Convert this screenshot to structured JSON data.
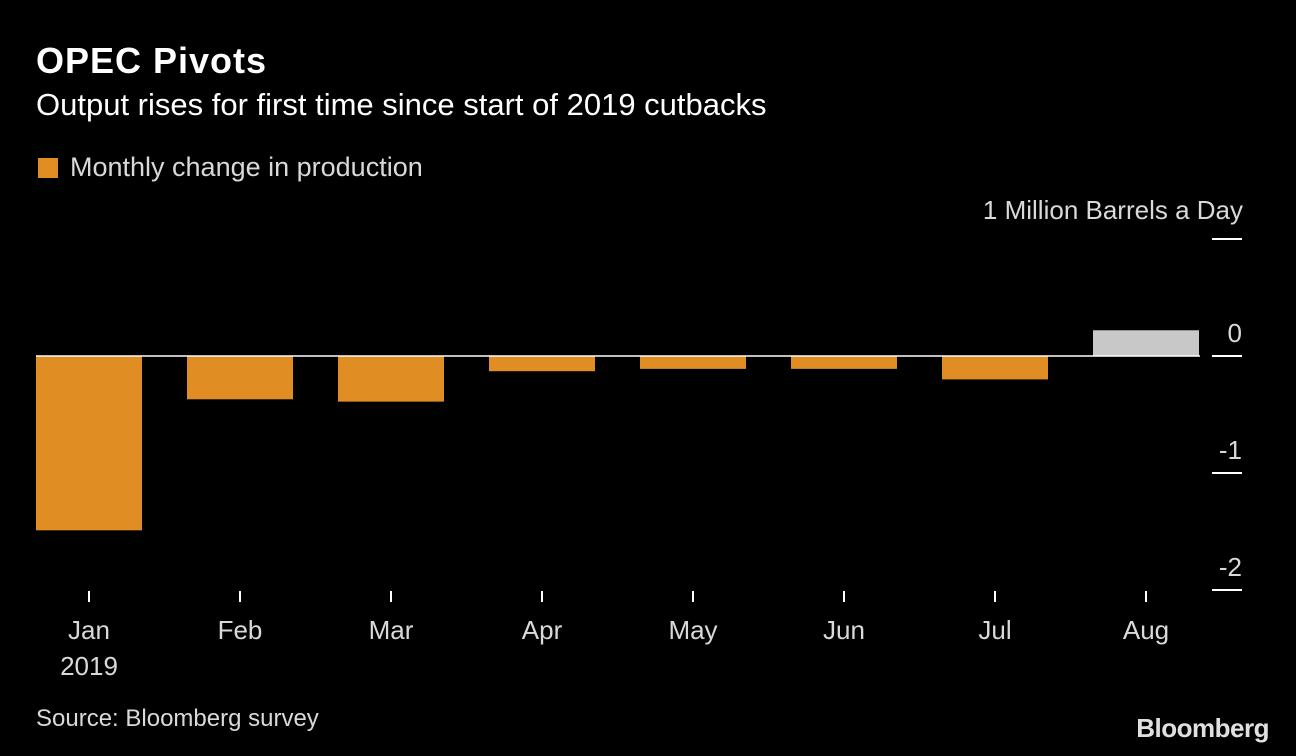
{
  "header": {
    "title": "OPEC Pivots",
    "subtitle": "Output rises for first time since start of 2019 cutbacks"
  },
  "legend": {
    "label": "Monthly change in production",
    "color": "#e08e24"
  },
  "unit_label": "1 Million Barrels a Day",
  "footer": {
    "source": "Source: Bloomberg survey",
    "brand": "Bloomberg"
  },
  "colors": {
    "background": "#000000",
    "negative_bar": "#e08e24",
    "positive_bar": "#c8c8c8",
    "zero_line": "#ffffff",
    "tick_text": "#d9d9d9"
  },
  "chart_data": {
    "type": "bar",
    "categories": [
      "Jan",
      "Feb",
      "Mar",
      "Apr",
      "May",
      "Jun",
      "Jul",
      "Aug"
    ],
    "category_sublabels": [
      "2019",
      "",
      "",
      "",
      "",
      "",
      "",
      ""
    ],
    "values": [
      -1.49,
      -0.37,
      -0.39,
      -0.13,
      -0.11,
      -0.11,
      -0.2,
      0.22
    ],
    "series": [
      {
        "name": "Monthly change in production",
        "values": [
          -1.49,
          -0.37,
          -0.39,
          -0.13,
          -0.11,
          -0.11,
          -0.2,
          0.22
        ]
      }
    ],
    "title": "OPEC Pivots",
    "subtitle": "Output rises for first time since start of 2019 cutbacks",
    "ylabel": "1 Million Barrels a Day",
    "xlabel": "",
    "ylim": [
      -2,
      1
    ],
    "yticks": [
      1,
      0,
      -1,
      -2
    ],
    "ytick_labels": [
      "",
      "0",
      "-1",
      "-2"
    ],
    "axis_side": "right",
    "grid": false,
    "legend_position": "top-left"
  }
}
